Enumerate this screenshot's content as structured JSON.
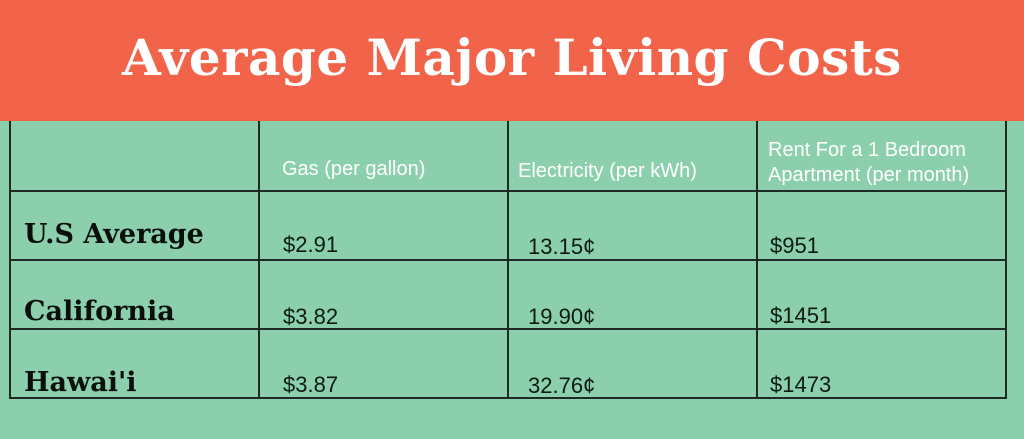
{
  "title": "Average Major Living Costs",
  "chart_data": {
    "type": "table",
    "title": "Average Major Living Costs",
    "columns": [
      "",
      "Gas (per gallon)",
      "Electricity (per kWh)",
      "Rent For a 1 Bedroom Apartment (per month)"
    ],
    "header_lines": {
      "gas": "Gas (per gallon)",
      "electricity": "Electricity (per kWh)",
      "rent_line1": "Rent For a 1 Bedroom",
      "rent_line2": "Apartment (per month)"
    },
    "rows": [
      {
        "label": "U.S Average",
        "gas": "$2.91",
        "electricity": "13.15¢",
        "rent": "$951"
      },
      {
        "label": "California",
        "gas": "$3.82",
        "electricity": "19.90¢",
        "rent": "$1451"
      },
      {
        "label": "Hawai'i",
        "gas": "$3.87",
        "electricity": "32.76¢",
        "rent": "$1473"
      }
    ]
  },
  "colors": {
    "banner": "#f2644a",
    "background": "#8ccfac",
    "grid_lines": "#1e2b24",
    "header_text": "#ffffff"
  }
}
